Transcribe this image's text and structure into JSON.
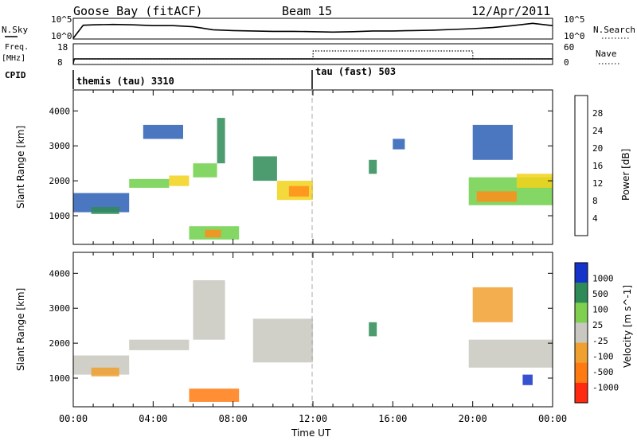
{
  "header": {
    "station": "Goose Bay (fitACF)",
    "beam": "Beam 15",
    "date": "12/Apr/2011"
  },
  "strips": {
    "nsky_label": "N.Sky",
    "nsearch_label": "N.Search",
    "nsky_ticks": [
      "10^5",
      "10^0"
    ],
    "nsearch_ticks": [
      "10^5",
      "10^0"
    ],
    "freq_label": "Freq.",
    "freq_unit": "[MHz]",
    "freq_ticks": [
      "18",
      "8"
    ],
    "nave_label": "Nave",
    "nave_ticks": [
      "60",
      "0"
    ],
    "cpid_label": "CPID",
    "programs": [
      {
        "name": "themis (tau) 3310",
        "start": "00:00",
        "end": "12:00"
      },
      {
        "name": "tau (fast) 503",
        "start": "12:00",
        "end": "24:00"
      }
    ]
  },
  "time_axis": {
    "title": "Time UT",
    "ticks": [
      "00:00",
      "04:00",
      "08:00",
      "12:00",
      "16:00",
      "20:00",
      "00:00"
    ]
  },
  "range_axis": {
    "title": "Slant Range [km]",
    "ticks": [
      "1000",
      "2000",
      "3000",
      "4000"
    ]
  },
  "colorbars": {
    "power": {
      "title": "Power [dB]",
      "ticks": [
        "4",
        "8",
        "12",
        "16",
        "20",
        "24",
        "28"
      ],
      "colors": [
        "#1a1aff",
        "#2a5fb5",
        "#2e8b57",
        "#6fd04a",
        "#f2d21a",
        "#ff8c1a",
        "#ff2a1a"
      ]
    },
    "velocity": {
      "title": "Velocity [m s^-1]",
      "ticks": [
        "1000",
        "500",
        "100",
        "25",
        "-25",
        "-100",
        "-500",
        "-1000"
      ],
      "colors": [
        "#1533c8",
        "#2e8b57",
        "#7fd050",
        "#c8c8c0",
        "#f0a030",
        "#ff7a10",
        "#ff2a10"
      ]
    }
  },
  "chart_data": [
    {
      "type": "line",
      "title": "N.Sky",
      "x_unit": "hours UT",
      "x": [
        0.0,
        0.5,
        1,
        2,
        3,
        4,
        5,
        6,
        7,
        8,
        9,
        10,
        11,
        12,
        13,
        14,
        15,
        16,
        17,
        18,
        19,
        20,
        21,
        22,
        23,
        24
      ],
      "y_log10": [
        0.0,
        3.4,
        3.5,
        3.6,
        3.5,
        3.3,
        3.3,
        3.0,
        2.2,
        2.0,
        1.9,
        1.8,
        1.8,
        1.7,
        1.6,
        1.7,
        1.9,
        1.9,
        2.0,
        2.1,
        2.3,
        2.5,
        2.8,
        3.3,
        3.9,
        3.3
      ],
      "ylim": [
        "10^0",
        "10^5"
      ]
    },
    {
      "type": "line",
      "title": "Freq. [MHz]",
      "x_unit": "hours UT",
      "x": [
        0,
        0.05,
        24
      ],
      "values": [
        8,
        10.5,
        10.5
      ],
      "ylim": [
        8,
        18
      ]
    },
    {
      "type": "line",
      "title": "Nave",
      "x_unit": "hours UT",
      "x": [
        0,
        0.05,
        12,
        12.01,
        20,
        20.01,
        24
      ],
      "values": [
        0,
        15,
        15,
        40,
        40,
        15,
        15
      ],
      "ylim": [
        0,
        60
      ]
    },
    {
      "type": "heatmap",
      "title": "Power [dB]",
      "xlabel": "Time UT",
      "ylabel": "Slant Range [km]",
      "xlim": [
        0,
        24
      ],
      "ylim": [
        180,
        4600
      ],
      "x_unit": "hours UT",
      "colorbar_ticks": [
        4,
        8,
        12,
        16,
        20,
        24,
        28
      ],
      "regions": [
        {
          "t0": 0.0,
          "t1": 2.8,
          "r0": 1100,
          "r1": 1650,
          "level": 8
        },
        {
          "t0": 0.9,
          "t1": 2.3,
          "r0": 1050,
          "r1": 1250,
          "level": 12
        },
        {
          "t0": 2.8,
          "t1": 4.8,
          "r0": 1800,
          "r1": 2050,
          "level": 16
        },
        {
          "t0": 4.8,
          "t1": 5.8,
          "r0": 1850,
          "r1": 2150,
          "level": 20
        },
        {
          "t0": 6.0,
          "t1": 7.2,
          "r0": 2100,
          "r1": 2500,
          "level": 16
        },
        {
          "t0": 7.2,
          "t1": 7.6,
          "r0": 2500,
          "r1": 3800,
          "level": 12
        },
        {
          "t0": 3.5,
          "t1": 5.5,
          "r0": 3200,
          "r1": 3600,
          "level": 8
        },
        {
          "t0": 5.8,
          "t1": 8.3,
          "r0": 320,
          "r1": 700,
          "level": 16
        },
        {
          "t0": 6.6,
          "t1": 7.4,
          "r0": 380,
          "r1": 600,
          "level": 24
        },
        {
          "t0": 9.0,
          "t1": 10.2,
          "r0": 2000,
          "r1": 2700,
          "level": 12
        },
        {
          "t0": 10.2,
          "t1": 12.0,
          "r0": 1450,
          "r1": 2000,
          "level": 20
        },
        {
          "t0": 10.8,
          "t1": 11.8,
          "r0": 1550,
          "r1": 1850,
          "level": 24
        },
        {
          "t0": 14.8,
          "t1": 15.2,
          "r0": 2200,
          "r1": 2600,
          "level": 12
        },
        {
          "t0": 16.0,
          "t1": 16.6,
          "r0": 2900,
          "r1": 3200,
          "level": 8
        },
        {
          "t0": 19.8,
          "t1": 24.0,
          "r0": 1300,
          "r1": 2100,
          "level": 16
        },
        {
          "t0": 20.2,
          "t1": 22.2,
          "r0": 1400,
          "r1": 1700,
          "level": 24
        },
        {
          "t0": 22.2,
          "t1": 24.0,
          "r0": 1800,
          "r1": 2200,
          "level": 20
        },
        {
          "t0": 20.0,
          "t1": 22.0,
          "r0": 2600,
          "r1": 3600,
          "level": 8
        }
      ]
    },
    {
      "type": "heatmap",
      "title": "Velocity [m s^-1]",
      "xlabel": "Time UT",
      "ylabel": "Slant Range [km]",
      "xlim": [
        0,
        24
      ],
      "ylim": [
        180,
        4600
      ],
      "x_unit": "hours UT",
      "colorbar_ticks": [
        1000,
        500,
        100,
        25,
        -25,
        -100,
        -500,
        -1000
      ],
      "regions": [
        {
          "t0": 0.0,
          "t1": 2.8,
          "r0": 1100,
          "r1": 1650,
          "velocity": 0
        },
        {
          "t0": 0.9,
          "t1": 2.3,
          "r0": 1050,
          "r1": 1300,
          "velocity": -200
        },
        {
          "t0": 2.8,
          "t1": 5.8,
          "r0": 1800,
          "r1": 2100,
          "velocity": 0
        },
        {
          "t0": 6.0,
          "t1": 7.6,
          "r0": 2100,
          "r1": 3800,
          "velocity": 0
        },
        {
          "t0": 5.8,
          "t1": 8.3,
          "r0": 320,
          "r1": 700,
          "velocity": -300
        },
        {
          "t0": 9.0,
          "t1": 12.0,
          "r0": 1450,
          "r1": 2700,
          "velocity": 0
        },
        {
          "t0": 14.8,
          "t1": 15.2,
          "r0": 2200,
          "r1": 2600,
          "velocity": 400
        },
        {
          "t0": 19.8,
          "t1": 24.0,
          "r0": 1300,
          "r1": 2100,
          "velocity": 0
        },
        {
          "t0": 20.0,
          "t1": 22.0,
          "r0": 2600,
          "r1": 3600,
          "velocity": -150
        },
        {
          "t0": 22.5,
          "t1": 23.0,
          "r0": 800,
          "r1": 1100,
          "velocity": 800
        }
      ]
    }
  ]
}
